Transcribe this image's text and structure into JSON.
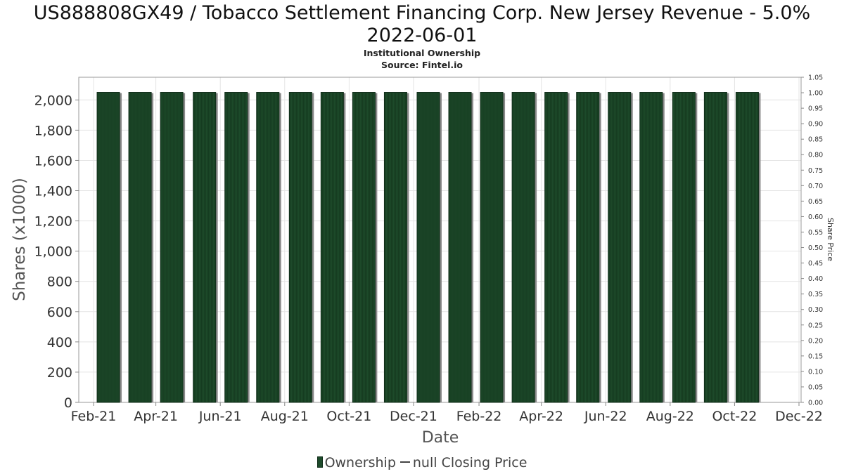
{
  "title_line1": "US888808GX49 / Tobacco Settlement Financing Corp. New Jersey Revenue - 5.0%",
  "title_line2": "2022-06-01",
  "subtitle": "Institutional Ownership",
  "source": "Source: Fintel.io",
  "legend": {
    "ownership": "Ownership",
    "price": "null Closing Price"
  },
  "colors": {
    "bar": "#1d4a2a",
    "bar_edge": "#0d2a16",
    "bar_shadow": "#8a8a8a",
    "grid": "#e4e4e4"
  },
  "chart_data": {
    "type": "bar",
    "title": "US888808GX49 / Tobacco Settlement Financing Corp. New Jersey Revenue - 5.0% 2022-06-01",
    "xlabel": "Date",
    "ylabel": "Shares (x1000)",
    "y2label": "Share Price",
    "x_ticks": [
      "Feb-21",
      "Apr-21",
      "Jun-21",
      "Aug-21",
      "Oct-21",
      "Dec-21",
      "Feb-22",
      "Apr-22",
      "Jun-22",
      "Aug-22",
      "Oct-22",
      "Dec-22"
    ],
    "x_range_days": [
      -14,
      670
    ],
    "bar_dates_days": [
      14,
      44,
      74,
      105,
      135,
      165,
      196,
      226,
      256,
      286,
      317,
      347,
      377,
      407,
      438,
      468,
      498,
      528,
      559,
      589,
      619
    ],
    "values": [
      2050,
      2050,
      2050,
      2050,
      2050,
      2050,
      2050,
      2050,
      2050,
      2050,
      2050,
      2050,
      2050,
      2050,
      2050,
      2050,
      2050,
      2050,
      2050,
      2050,
      2050
    ],
    "y_ticks": [
      "0",
      "200",
      "400",
      "600",
      "800",
      "1,000",
      "1,200",
      "1,400",
      "1,600",
      "1,800",
      "2,000"
    ],
    "ylim": [
      0,
      2150
    ],
    "y2_ticks": [
      "0.00",
      "0.05",
      "0.10",
      "0.15",
      "0.20",
      "0.25",
      "0.30",
      "0.35",
      "0.40",
      "0.45",
      "0.50",
      "0.55",
      "0.60",
      "0.65",
      "0.70",
      "0.75",
      "0.80",
      "0.85",
      "0.90",
      "0.95",
      "1.00",
      "1.05"
    ],
    "y2lim": [
      0,
      1.05
    ],
    "grid": true,
    "legend_position": "bottom-center"
  }
}
